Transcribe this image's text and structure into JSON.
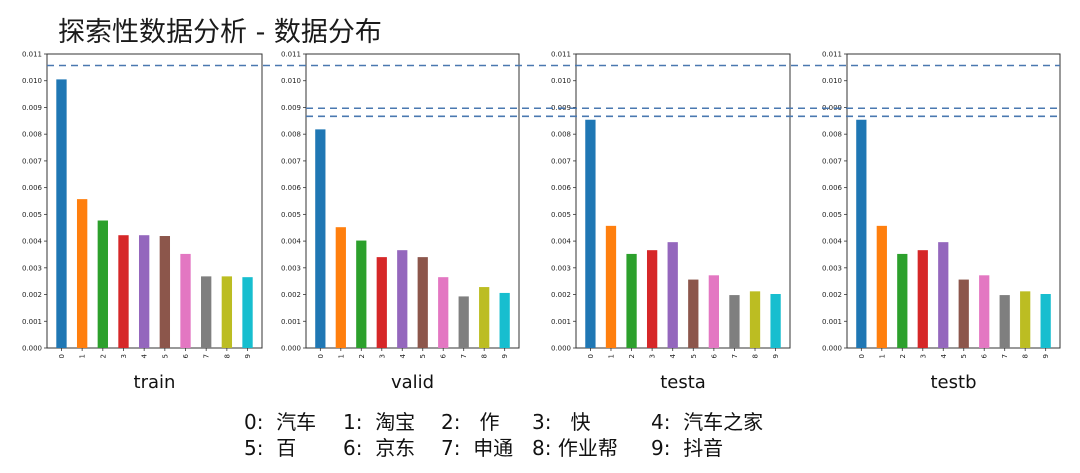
{
  "title": "探索性数据分析 - 数据分布",
  "chart_data": [
    {
      "type": "bar",
      "title": "train",
      "categories": [
        "0",
        "1",
        "2",
        "3",
        "4",
        "5",
        "6",
        "7",
        "8",
        "9"
      ],
      "values": [
        0.01005,
        0.00557,
        0.00477,
        0.00422,
        0.00422,
        0.00419,
        0.00352,
        0.00268,
        0.00268,
        0.00265
      ],
      "ylim": [
        0,
        0.011
      ],
      "yticks": [
        "0.000",
        "0.001",
        "0.002",
        "0.003",
        "0.004",
        "0.005",
        "0.006",
        "0.007",
        "0.008",
        "0.009",
        "0.010",
        "0.011"
      ]
    },
    {
      "type": "bar",
      "title": "valid",
      "categories": [
        "0",
        "1",
        "2",
        "3",
        "4",
        "5",
        "6",
        "7",
        "8",
        "9"
      ],
      "values": [
        0.00818,
        0.00452,
        0.00402,
        0.0034,
        0.00366,
        0.0034,
        0.00265,
        0.00193,
        0.00228,
        0.00206
      ],
      "ylim": [
        0,
        0.011
      ],
      "yticks": [
        "0.000",
        "0.001",
        "0.002",
        "0.003",
        "0.004",
        "0.005",
        "0.006",
        "0.007",
        "0.008",
        "0.009",
        "0.010",
        "0.011"
      ]
    },
    {
      "type": "bar",
      "title": "testa",
      "categories": [
        "0",
        "1",
        "2",
        "3",
        "4",
        "5",
        "6",
        "7",
        "8",
        "9"
      ],
      "values": [
        0.00854,
        0.00457,
        0.00352,
        0.00366,
        0.00396,
        0.00256,
        0.00272,
        0.00198,
        0.00212,
        0.00202
      ],
      "ylim": [
        0,
        0.011
      ],
      "yticks": [
        "0.000",
        "0.001",
        "0.002",
        "0.003",
        "0.004",
        "0.005",
        "0.006",
        "0.007",
        "0.008",
        "0.009",
        "0.010",
        "0.011"
      ]
    },
    {
      "type": "bar",
      "title": "testb",
      "categories": [
        "0",
        "1",
        "2",
        "3",
        "4",
        "5",
        "6",
        "7",
        "8",
        "9"
      ],
      "values": [
        0.00854,
        0.00457,
        0.00352,
        0.00366,
        0.00396,
        0.00256,
        0.00272,
        0.00198,
        0.00212,
        0.00202
      ],
      "ylim": [
        0,
        0.011
      ],
      "yticks": [
        "0.000",
        "0.001",
        "0.002",
        "0.003",
        "0.004",
        "0.005",
        "0.006",
        "0.007",
        "0.008",
        "0.009",
        "0.010",
        "0.011"
      ]
    }
  ],
  "reference_lines": [
    0.01057,
    0.00897,
    0.00867
  ],
  "colors": [
    "#1f77b4",
    "#ff7f0e",
    "#2ca02c",
    "#d62728",
    "#9467bd",
    "#8c564b",
    "#e377c2",
    "#7f7f7f",
    "#bcbd22",
    "#17becf"
  ],
  "reference_line_color": "#4a78b0",
  "legend": [
    {
      "key": "0:",
      "label": "汽车"
    },
    {
      "key": "1:",
      "label": "淘宝"
    },
    {
      "key": "2:",
      "label": "作"
    },
    {
      "key": "3:",
      "label": "快"
    },
    {
      "key": "4:",
      "label": "汽车之家"
    },
    {
      "key": "5:",
      "label": "百"
    },
    {
      "key": "6:",
      "label": "京东"
    },
    {
      "key": "7:",
      "label": "申通"
    },
    {
      "key": "8:",
      "label": "作业帮"
    },
    {
      "key": "9:",
      "label": "抖音"
    }
  ]
}
